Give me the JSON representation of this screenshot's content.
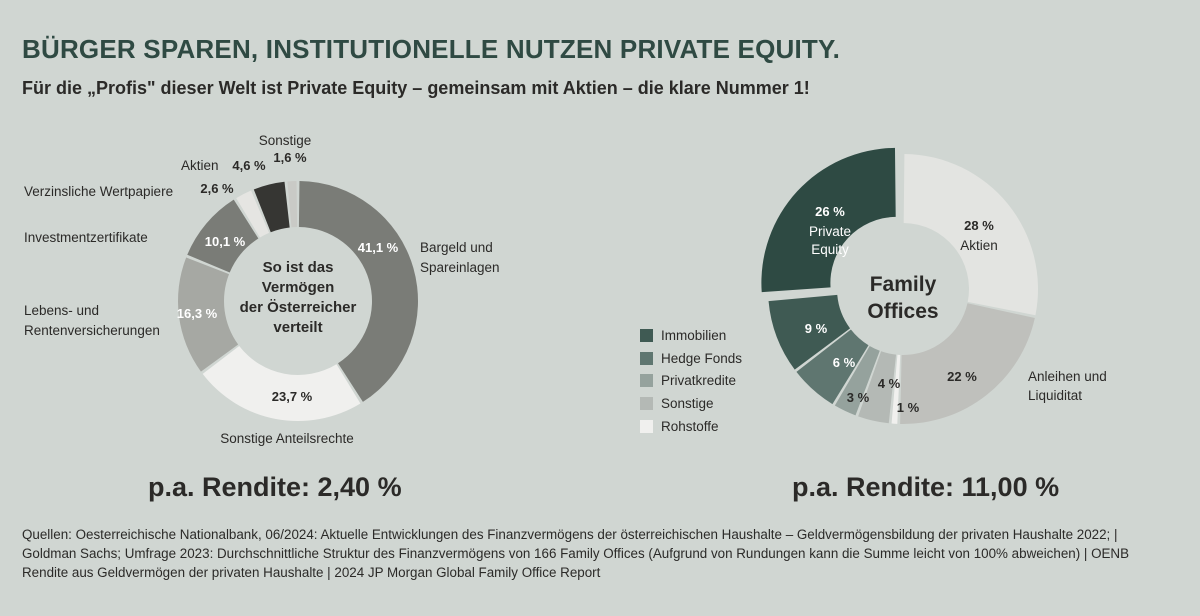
{
  "headline": "BÜRGER SPAREN, INSTITUTIONELLE NUTZEN PRIVATE EQUITY.",
  "subline": "Für die „Profis\" dieser Welt ist Private Equity – gemeinsam mit Aktien – die klare Nummer 1!",
  "chart_data": [
    {
      "type": "pie",
      "center_label": [
        "So ist das",
        "Vermögen",
        "der Österreicher",
        "verteilt"
      ],
      "slices": [
        {
          "label": "Bargeld und Spareinlagen",
          "label_lines": [
            "Bargeld und",
            "Spareinlagen"
          ],
          "value": 41.1,
          "value_label": "41,1 %",
          "color": "#7a7c77"
        },
        {
          "label": "Sonstige Anteilsrechte",
          "label_lines": [
            "Sonstige Anteilsrechte"
          ],
          "value": 23.7,
          "value_label": "23,7 %",
          "color": "#f0f0ee"
        },
        {
          "label": "Lebens- und Rentenversicherungen",
          "label_lines": [
            "Lebens- und",
            "Rentenversicherungen"
          ],
          "value": 16.3,
          "value_label": "16,3 %",
          "color": "#a6a8a3"
        },
        {
          "label": "Investmentzertifikate",
          "label_lines": [
            "Investmentzertifikate"
          ],
          "value": 10.1,
          "value_label": "10,1 %",
          "color": "#7a7c77"
        },
        {
          "label": "Verzinsliche Wertpapiere",
          "label_lines": [
            "Verzinsliche Wertpapiere"
          ],
          "value": 2.6,
          "value_label": "2,6 %",
          "color": "#e5e5e2"
        },
        {
          "label": "Aktien",
          "label_lines": [
            "Aktien"
          ],
          "value": 4.6,
          "value_label": "4,6 %",
          "color": "#363633"
        },
        {
          "label": "Sonstige",
          "label_lines": [
            "Sonstige"
          ],
          "value": 1.6,
          "value_label": "1,6 %",
          "color": "#c9cac6"
        }
      ],
      "rendite": "p.a. Rendite: 2,40 %"
    },
    {
      "type": "pie",
      "center_label": [
        "Family",
        "Offices"
      ],
      "slices": [
        {
          "label": "Aktien",
          "value": 28,
          "value_label": "28 %",
          "color": "#e3e4e1"
        },
        {
          "label": "Anleihen und Liquiditat",
          "label_lines": [
            "Anleihen und",
            "Liquiditat"
          ],
          "value": 22,
          "value_label": "22 %",
          "color": "#bfc0bc"
        },
        {
          "label": "Rohstoffe",
          "value": 1,
          "value_label": "1 %",
          "color": "#f0f0ee"
        },
        {
          "label": "Sonstige",
          "value": 4,
          "value_label": "4 %",
          "color": "#b4b9b5"
        },
        {
          "label": "Privatkredite",
          "value": 3,
          "value_label": "3 %",
          "color": "#95a29d"
        },
        {
          "label": "Hedge Fonds",
          "value": 6,
          "value_label": "6 %",
          "color": "#5f7670"
        },
        {
          "label": "Immobilien",
          "value": 9,
          "value_label": "9 %",
          "color": "#3f5a53"
        },
        {
          "label": "Private Equity",
          "value": 26,
          "value_label": "26 %",
          "color": "#2e4a43",
          "exploded": true
        }
      ],
      "legend": [
        {
          "label": "Immobilien",
          "color": "#3f5a53"
        },
        {
          "label": "Hedge Fonds",
          "color": "#5f7670"
        },
        {
          "label": "Privatkredite",
          "color": "#95a29d"
        },
        {
          "label": "Sonstige",
          "color": "#b4b9b5"
        },
        {
          "label": "Rohstoffe",
          "color": "#f0f0ee"
        }
      ],
      "rendite": "p.a. Rendite: 11,00 %"
    }
  ],
  "sources": "Quellen: Oesterreichische Nationalbank, 06/2024: Aktuelle Entwicklungen des Finanzvermögens der österreichischen Haushalte – Geldvermögensbildung der privaten Haushalte 2022; | Goldman Sachs; Umfrage 2023: Durchschnittliche Struktur des Finanzvermögens von 166 Family Offices  (Aufgrund von Rundungen kann die Summe leicht von 100% abweichen) | OENB Rendite aus Geldvermögen der privaten Haushalte | 2024 JP Morgan Global Family Office Report"
}
